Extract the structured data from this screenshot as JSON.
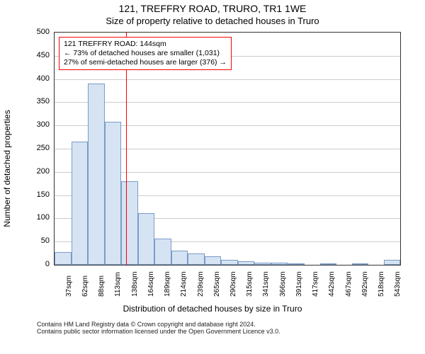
{
  "title_line1": "121, TREFFRY ROAD, TRURO, TR1 1WE",
  "title_line2": "Size of property relative to detached houses in Truro",
  "y_axis_label": "Number of detached properties",
  "x_axis_label": "Distribution of detached houses by size in Truro",
  "footer_line1": "Contains HM Land Registry data © Crown copyright and database right 2024.",
  "footer_line2": "Contains public sector information licensed under the Open Government Licence v3.0.",
  "annotation": {
    "line1": "121 TREFFRY ROAD: 144sqm",
    "line2": "← 73% of detached houses are smaller (1,031)",
    "line3": "27% of semi-detached houses are larger (376) →"
  },
  "chart": {
    "type": "histogram",
    "ylim": [
      0,
      500
    ],
    "ytick_step": 50,
    "background_color": "#ffffff",
    "grid_color": "#cccccc",
    "border_color": "#333333",
    "bar_fill": "#d5e3f3",
    "bar_border": "#7a9cc6",
    "marker_color": "#ff0000",
    "marker_x_sqm": 144,
    "x_min_sqm": 37,
    "x_max_sqm": 555,
    "x_tick_labels": [
      "37sqm",
      "62sqm",
      "88sqm",
      "113sqm",
      "138sqm",
      "164sqm",
      "189sqm",
      "214sqm",
      "239sqm",
      "265sqm",
      "290sqm",
      "315sqm",
      "341sqm",
      "366sqm",
      "391sqm",
      "417sqm",
      "442sqm",
      "467sqm",
      "492sqm",
      "518sqm",
      "543sqm"
    ],
    "bar_values": [
      28,
      265,
      390,
      308,
      180,
      112,
      57,
      30,
      25,
      18,
      10,
      8,
      5,
      4,
      3,
      0,
      3,
      0,
      2,
      0,
      10
    ],
    "title_fontsize": 14,
    "label_fontsize": 12,
    "tick_fontsize": 11
  }
}
